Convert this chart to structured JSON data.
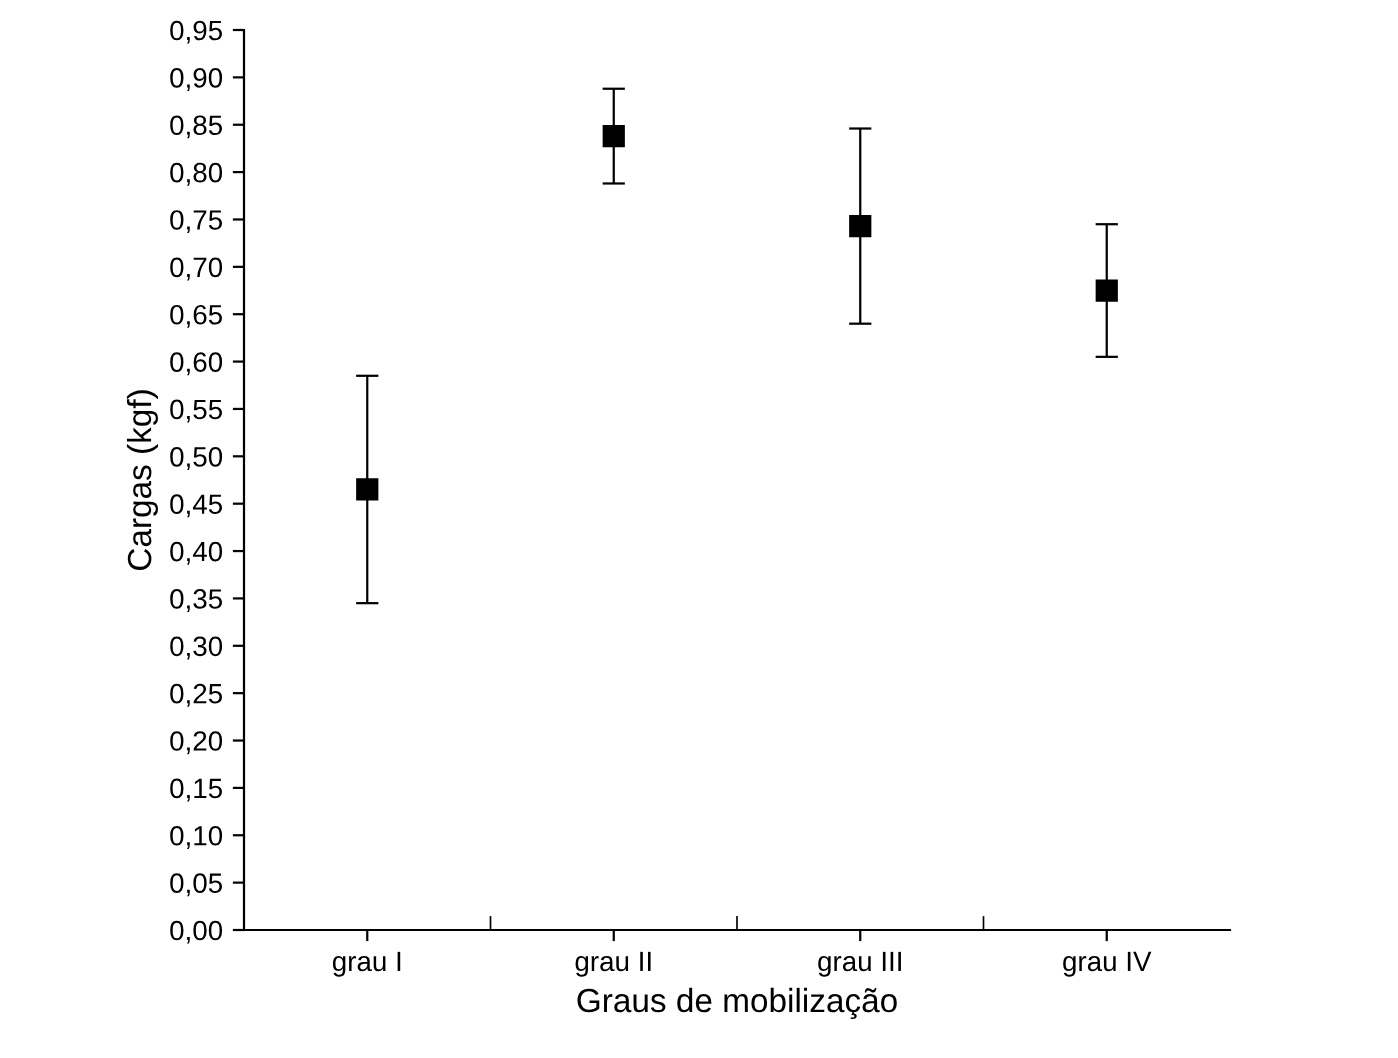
{
  "chart_data": {
    "type": "scatter",
    "xlabel": "Graus de mobilização",
    "ylabel": "Cargas (kgf)",
    "categories": [
      "grau I",
      "grau II",
      "grau III",
      "grau IV"
    ],
    "values": [
      0.465,
      0.838,
      0.743,
      0.675
    ],
    "errors": [
      0.12,
      0.05,
      0.103,
      0.07
    ],
    "color": "#000000",
    "marker": "square",
    "grid": false,
    "legend": false,
    "ylim": [
      0,
      0.95
    ],
    "yticks": [
      {
        "value": 0,
        "label": "0,00"
      },
      {
        "value": 0.05,
        "label": "0,05"
      },
      {
        "value": 0.1,
        "label": "0,10"
      },
      {
        "value": 0.15,
        "label": "0,15"
      },
      {
        "value": 0.2,
        "label": "0,20"
      },
      {
        "value": 0.25,
        "label": "0,25"
      },
      {
        "value": 0.3,
        "label": "0,30"
      },
      {
        "value": 0.35,
        "label": "0,35"
      },
      {
        "value": 0.4,
        "label": "0,40"
      },
      {
        "value": 0.45,
        "label": "0,45"
      },
      {
        "value": 0.5,
        "label": "0,50"
      },
      {
        "value": 0.55,
        "label": "0,55"
      },
      {
        "value": 0.6,
        "label": "0,60"
      },
      {
        "value": 0.65,
        "label": "0,65"
      },
      {
        "value": 0.7,
        "label": "0,70"
      },
      {
        "value": 0.75,
        "label": "0,75"
      },
      {
        "value": 0.8,
        "label": "0,80"
      },
      {
        "value": 0.85,
        "label": "0,85"
      },
      {
        "value": 0.9,
        "label": "0,90"
      },
      {
        "value": 0.95,
        "label": "0,95"
      }
    ]
  }
}
